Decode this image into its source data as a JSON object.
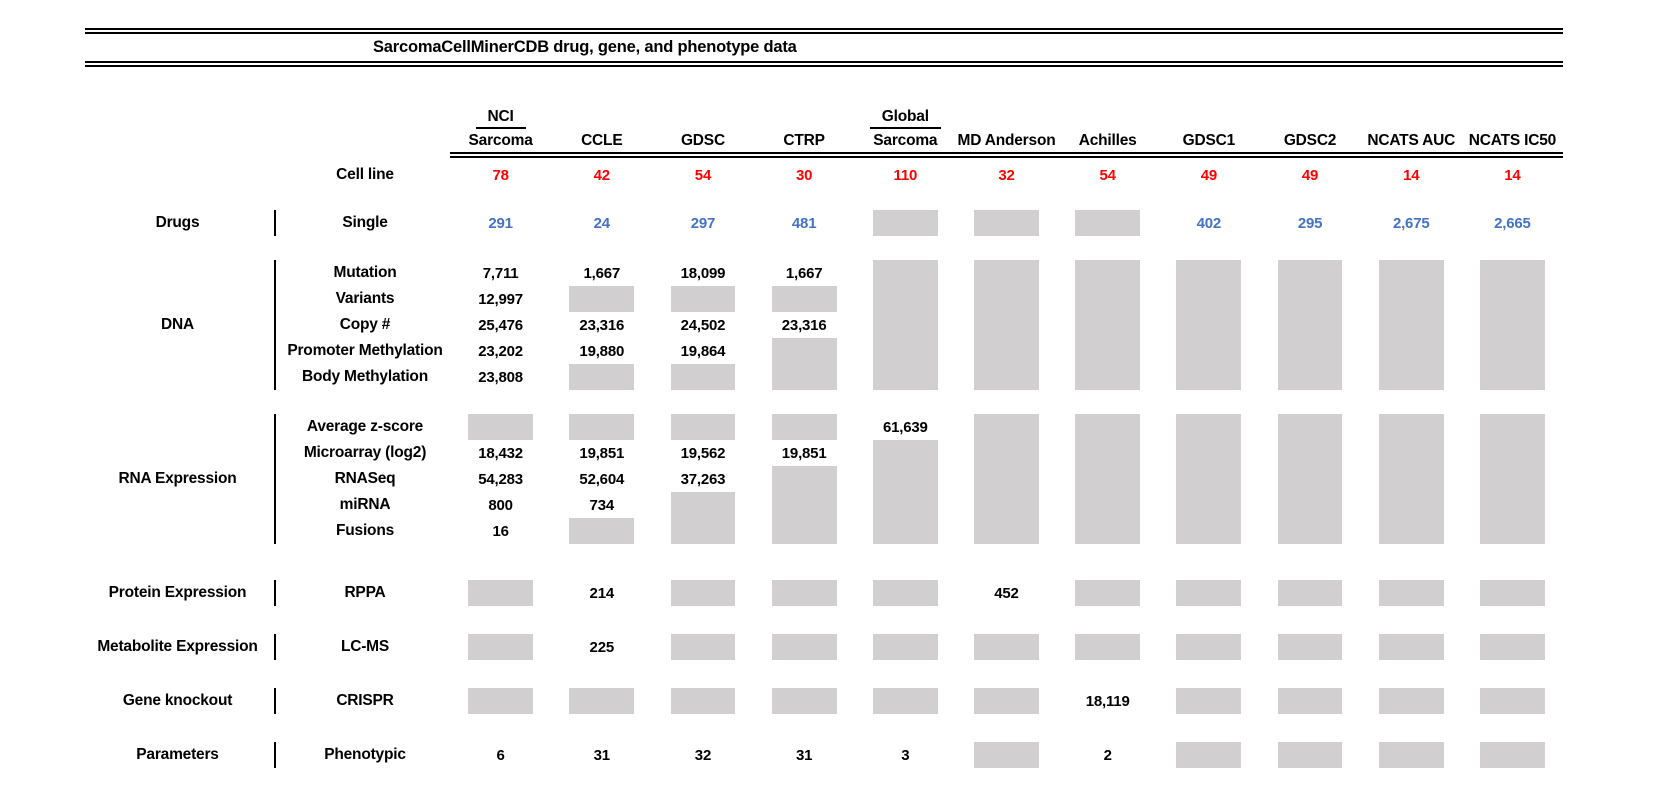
{
  "title": "SarcomaCellMinerCDB drug, gene, and phenotype data",
  "colors": {
    "red": "#FF0000",
    "blue": "#4472C4",
    "gray": "#D1CFCF",
    "black": "#000000"
  },
  "legend": {
    "gray_box_meaning": "data not available"
  },
  "chart_data": {
    "type": "table",
    "title": "SarcomaCellMinerCDB drug, gene, and phenotype data",
    "columns": [
      {
        "top": "NCI",
        "label": "Sarcoma"
      },
      {
        "label": "CCLE"
      },
      {
        "label": "GDSC"
      },
      {
        "label": "CTRP"
      },
      {
        "top": "Global",
        "label": "Sarcoma"
      },
      {
        "label": "MD Anderson"
      },
      {
        "label": "Achilles"
      },
      {
        "label": "GDSC1"
      },
      {
        "label": "GDSC2"
      },
      {
        "label": "NCATS AUC"
      },
      {
        "label": "NCATS IC50"
      }
    ],
    "cell_line": {
      "label": "Cell line",
      "color": "red",
      "values": [
        "78",
        "42",
        "54",
        "30",
        "110",
        "32",
        "54",
        "49",
        "49",
        "14",
        "14"
      ]
    },
    "sections": [
      {
        "category": "Drugs",
        "rows": [
          {
            "label": "Single",
            "color": "blue",
            "values": [
              "291",
              "24",
              "297",
              "481",
              null,
              null,
              null,
              "402",
              "295",
              "2,675",
              "2,665"
            ]
          }
        ]
      },
      {
        "category": "DNA",
        "rows": [
          {
            "label": "Mutation",
            "values": [
              "7,711",
              "1,667",
              "18,099",
              "1,667",
              null,
              null,
              null,
              null,
              null,
              null,
              null
            ]
          },
          {
            "label": "Variants",
            "values": [
              "12,997",
              null,
              null,
              null,
              null,
              null,
              null,
              null,
              null,
              null,
              null
            ]
          },
          {
            "label": "Copy #",
            "values": [
              "25,476",
              "23,316",
              "24,502",
              "23,316",
              null,
              null,
              null,
              null,
              null,
              null,
              null
            ]
          },
          {
            "label": "Promoter Methylation",
            "values": [
              "23,202",
              "19,880",
              "19,864",
              null,
              null,
              null,
              null,
              null,
              null,
              null,
              null
            ]
          },
          {
            "label": "Body Methylation",
            "values": [
              "23,808",
              null,
              null,
              null,
              null,
              null,
              null,
              null,
              null,
              null,
              null
            ]
          }
        ]
      },
      {
        "category": "RNA Expression",
        "rows": [
          {
            "label": "Average z-score",
            "values": [
              null,
              null,
              null,
              null,
              "61,639",
              null,
              null,
              null,
              null,
              null,
              null
            ]
          },
          {
            "label": "Microarray (log2)",
            "values": [
              "18,432",
              "19,851",
              "19,562",
              "19,851",
              null,
              null,
              null,
              null,
              null,
              null,
              null
            ]
          },
          {
            "label": "RNASeq",
            "values": [
              "54,283",
              "52,604",
              "37,263",
              null,
              null,
              null,
              null,
              null,
              null,
              null,
              null
            ]
          },
          {
            "label": "miRNA",
            "values": [
              "800",
              "734",
              null,
              null,
              null,
              null,
              null,
              null,
              null,
              null,
              null
            ]
          },
          {
            "label": "Fusions",
            "values": [
              "16",
              null,
              null,
              null,
              null,
              null,
              null,
              null,
              null,
              null,
              null
            ]
          }
        ]
      },
      {
        "category": "Protein Expression",
        "rows": [
          {
            "label": "RPPA",
            "values": [
              null,
              "214",
              null,
              null,
              null,
              "452",
              null,
              null,
              null,
              null,
              null
            ]
          }
        ]
      },
      {
        "category": "Metabolite Expression",
        "rows": [
          {
            "label": "LC-MS",
            "values": [
              null,
              "225",
              null,
              null,
              null,
              null,
              null,
              null,
              null,
              null,
              null
            ]
          }
        ]
      },
      {
        "category": "Gene knockout",
        "rows": [
          {
            "label": "CRISPR",
            "values": [
              null,
              null,
              null,
              null,
              null,
              null,
              "18,119",
              null,
              null,
              null,
              null
            ]
          }
        ]
      },
      {
        "category": "Parameters",
        "rows": [
          {
            "label": "Phenotypic",
            "values": [
              "6",
              "31",
              "32",
              "31",
              "3",
              null,
              "2",
              null,
              null,
              null,
              null
            ]
          }
        ]
      }
    ]
  }
}
